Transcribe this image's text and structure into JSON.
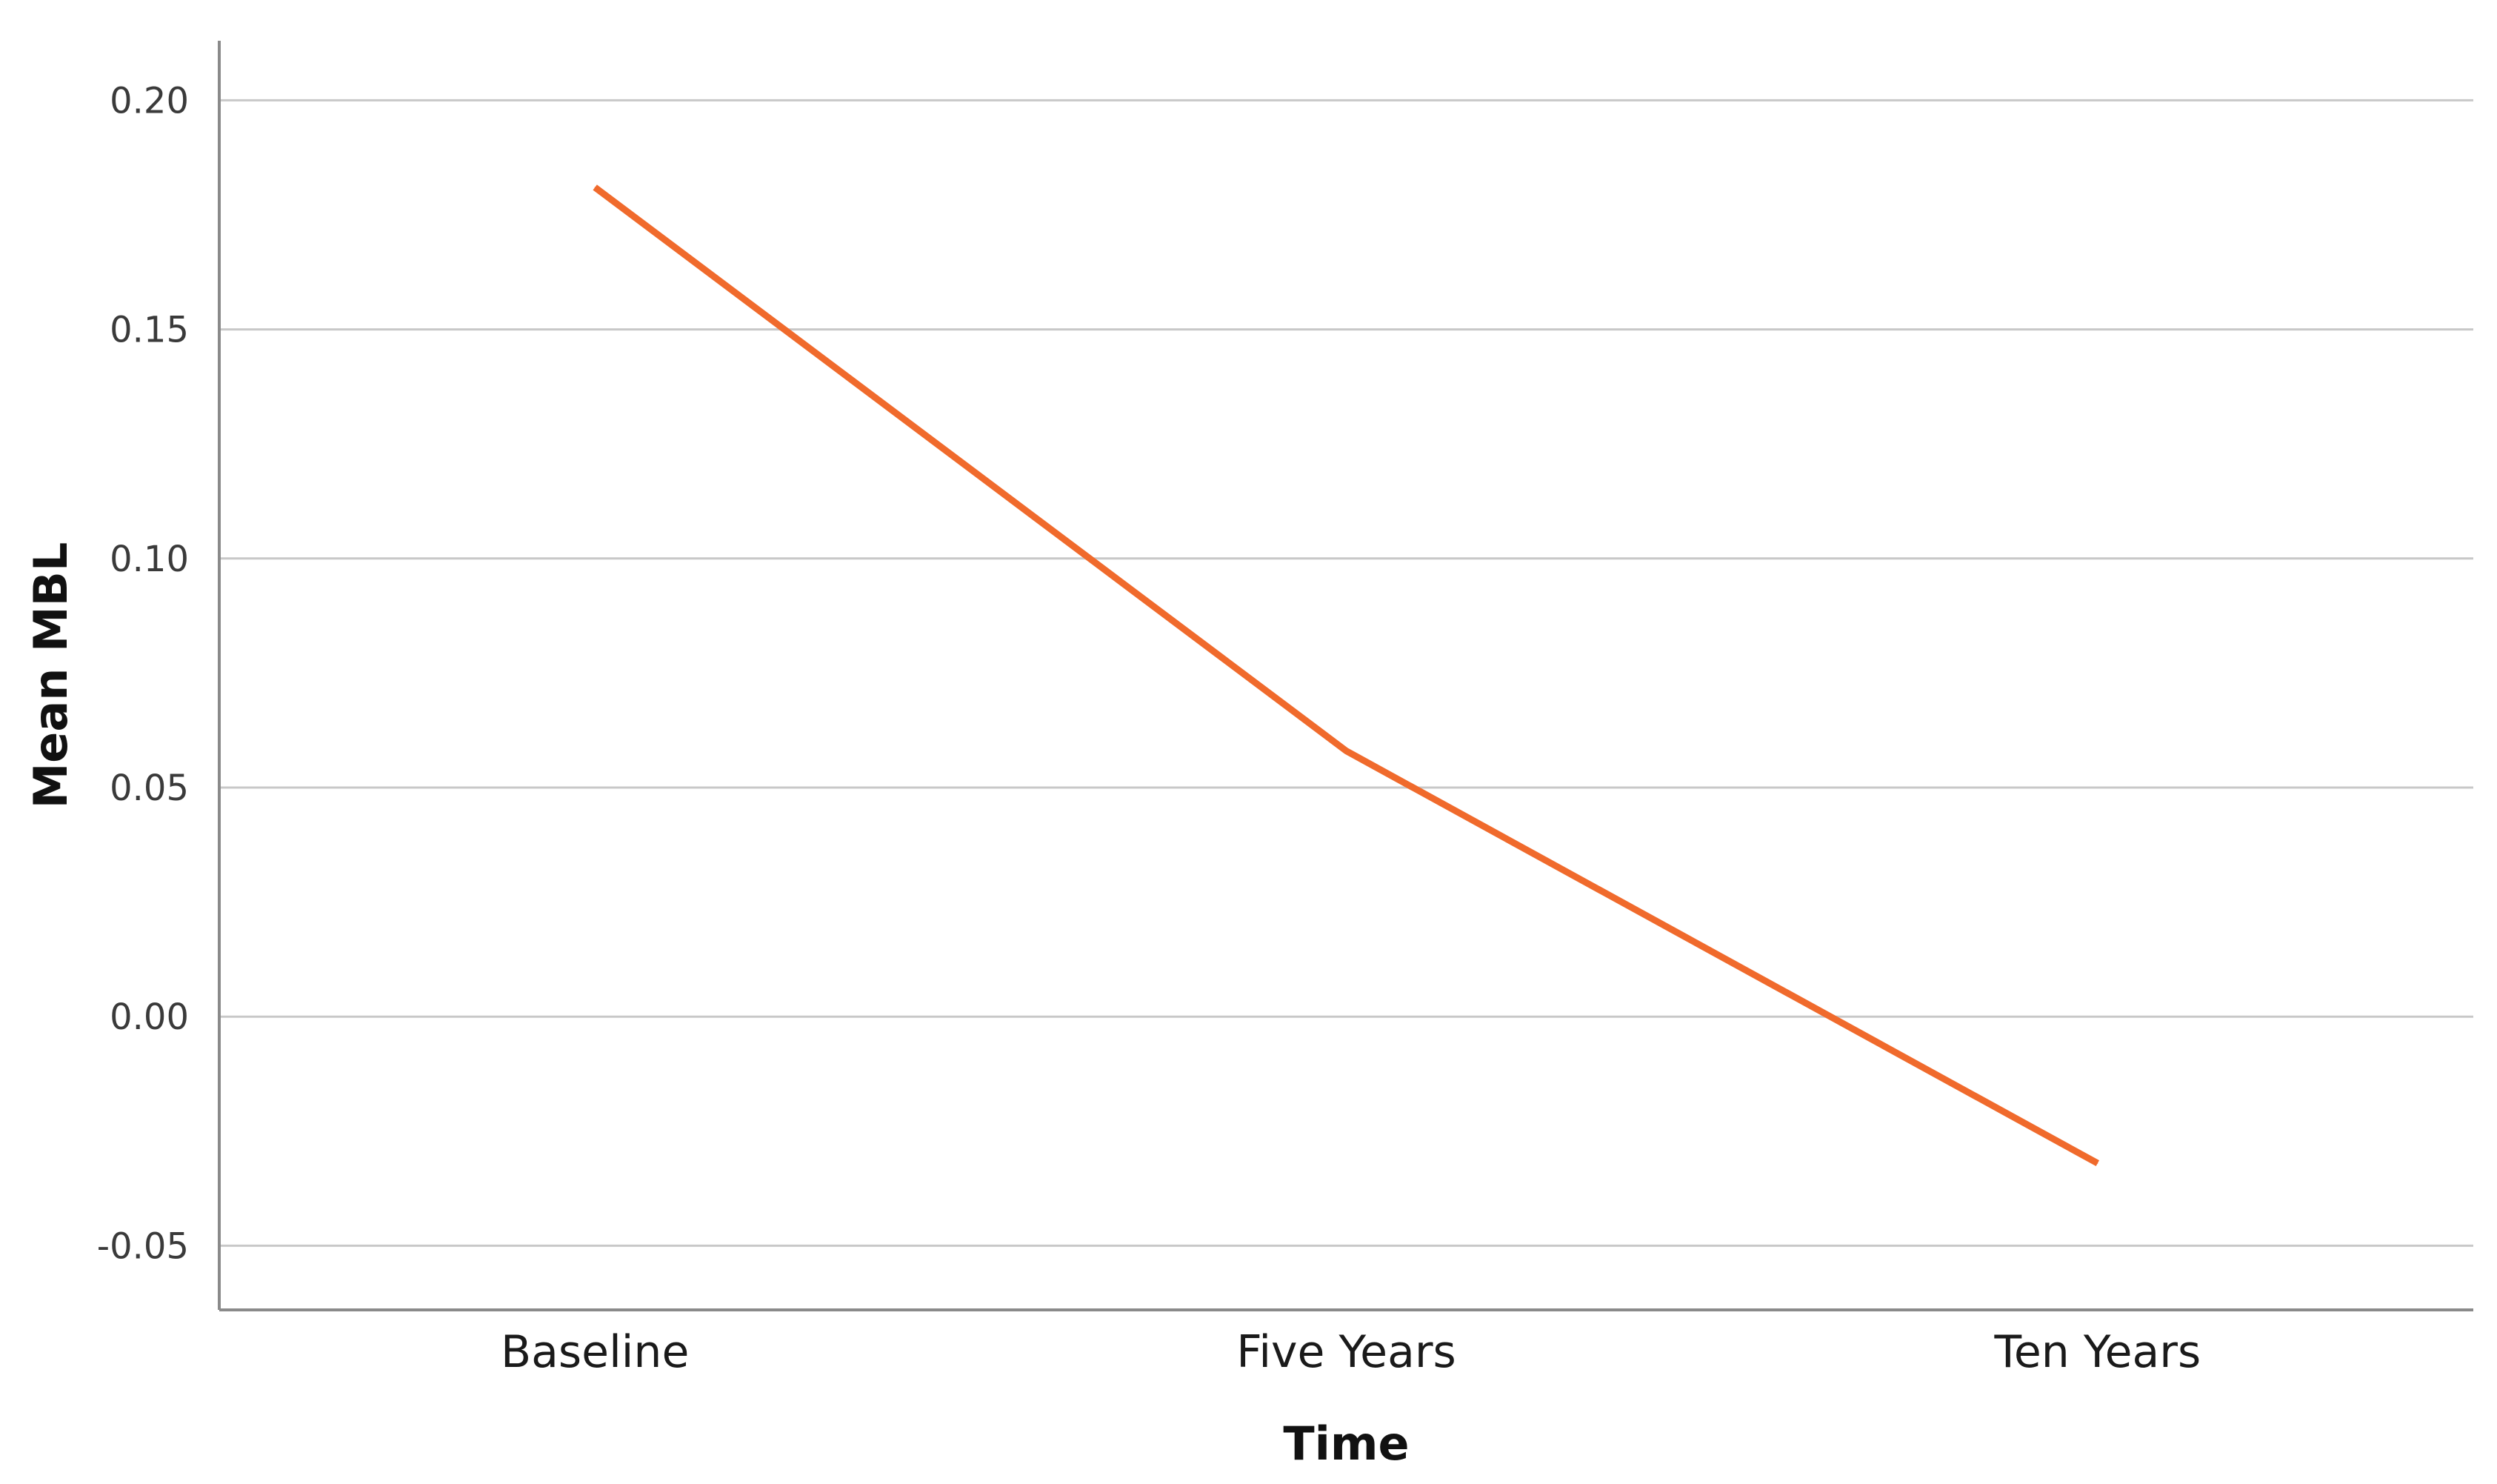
{
  "chart_data": {
    "type": "line",
    "categories": [
      "Baseline",
      "Five Years",
      "Ten Years"
    ],
    "series": [
      {
        "values": [
          0.181,
          0.058,
          -0.032
        ],
        "color": "#F06A2C"
      }
    ],
    "xlabel": "Time",
    "ylabel": "Mean MBL",
    "ylim": [
      -0.064,
      0.213
    ],
    "yticks": [
      -0.05,
      0.0,
      0.05,
      0.1,
      0.15,
      0.2
    ],
    "ytick_labels": [
      "-0.05",
      "0.00",
      "0.05",
      "0.10",
      "0.15",
      "0.20"
    ],
    "grid": true,
    "gridline_color": "#c8c8c8",
    "axis_color": "#8a8a8a"
  }
}
